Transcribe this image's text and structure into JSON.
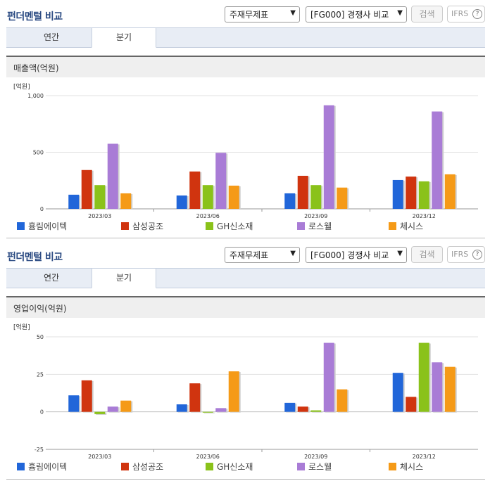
{
  "colors": [
    "#2166d9",
    "#d0340f",
    "#8ac21a",
    "#a97cd6",
    "#f59a17"
  ],
  "legend_labels": [
    "흄림에이텍",
    "삼성공조",
    "GH신소재",
    "로스웰",
    "체시스"
  ],
  "sections": [
    {
      "title": "펀더멘털 비교",
      "select1": "주재무제표",
      "select2": "[FG000] 경쟁사 비교",
      "search_label": "검색",
      "ifrs_label": "IFRS",
      "ifrs_help": "?",
      "tabs": [
        "연간",
        "분기"
      ],
      "metric": "매출액(억원)"
    },
    {
      "title": "펀더멘털 비교",
      "select1": "주재무제표",
      "select2": "[FG000] 경쟁사 비교",
      "search_label": "검색",
      "ifrs_label": "IFRS",
      "ifrs_help": "?",
      "tabs": [
        "연간",
        "분기"
      ],
      "metric": "영업이익(억원)"
    }
  ],
  "chart_data": [
    {
      "type": "bar",
      "unit_label": "[억원]",
      "categories": [
        "2023/03",
        "2023/06",
        "2023/09",
        "2023/12"
      ],
      "yticks": [
        "1,000",
        "500",
        "0"
      ],
      "ylim": [
        0,
        1000
      ],
      "grid": true,
      "legend_position": "bottom",
      "series": [
        {
          "name": "흄림에이텍",
          "values": [
            125,
            118,
            137,
            255
          ]
        },
        {
          "name": "삼성공조",
          "values": [
            343,
            330,
            292,
            285
          ]
        },
        {
          "name": "GH신소재",
          "values": [
            210,
            210,
            210,
            243
          ]
        },
        {
          "name": "로스웰",
          "values": [
            575,
            495,
            915,
            860
          ]
        },
        {
          "name": "체시스",
          "values": [
            137,
            205,
            188,
            305
          ]
        }
      ]
    },
    {
      "type": "bar",
      "unit_label": "[억원]",
      "categories": [
        "2023/03",
        "2023/06",
        "2023/09",
        "2023/12"
      ],
      "yticks": [
        "50",
        "25",
        "0",
        "-25"
      ],
      "ylim": [
        -25,
        50
      ],
      "grid": true,
      "legend_position": "bottom",
      "series": [
        {
          "name": "흄림에이텍",
          "values": [
            11,
            5,
            6,
            26
          ]
        },
        {
          "name": "삼성공조",
          "values": [
            21,
            19,
            3.5,
            10
          ]
        },
        {
          "name": "GH신소재",
          "values": [
            -1.5,
            -0.5,
            1,
            46
          ]
        },
        {
          "name": "로스웰",
          "values": [
            3.5,
            2.5,
            46,
            33
          ]
        },
        {
          "name": "체시스",
          "values": [
            7.5,
            27,
            15,
            30
          ]
        }
      ]
    }
  ]
}
